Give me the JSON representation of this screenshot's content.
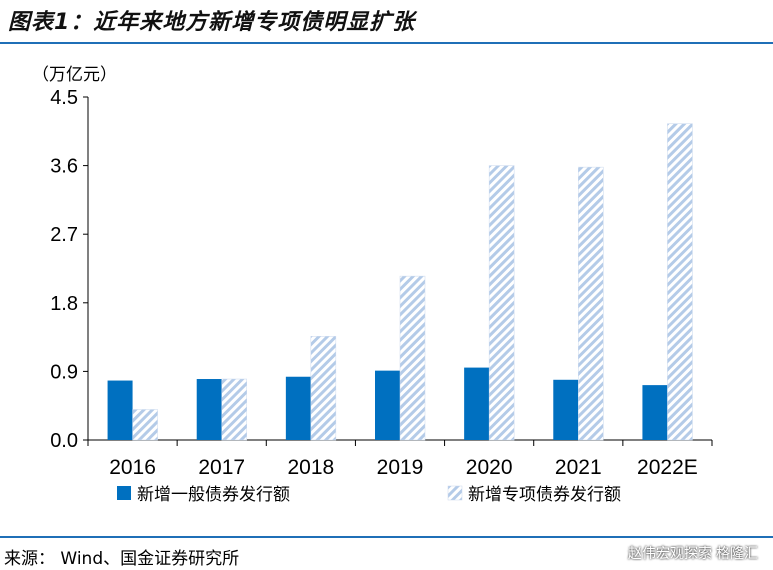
{
  "header": {
    "title": "图表1：近年来地方新增专项债明显扩张"
  },
  "source": {
    "text": "来源： Wind、国金证券研究所"
  },
  "watermark": {
    "line1": "赵伟宏观探索",
    "line2": "格隆汇"
  },
  "colors": {
    "general": "#0070c0",
    "special_stripe": "#b4cbe8",
    "rule": "#1f6fb7"
  },
  "chart_data": {
    "type": "bar",
    "unit_label": "（万亿元）",
    "categories": [
      "2016",
      "2017",
      "2018",
      "2019",
      "2020",
      "2021",
      "2022E"
    ],
    "series": [
      {
        "name": "新增一般债券发行额",
        "values": [
          0.78,
          0.8,
          0.83,
          0.91,
          0.95,
          0.79,
          0.72
        ]
      },
      {
        "name": "新增专项债券发行额",
        "values": [
          0.4,
          0.8,
          1.36,
          2.15,
          3.6,
          3.58,
          4.15
        ]
      }
    ],
    "yticks": [
      "0.0",
      "0.9",
      "1.8",
      "2.7",
      "3.6",
      "4.5"
    ],
    "ylim": [
      0,
      4.5
    ],
    "grid": false,
    "legend": "bottom"
  }
}
